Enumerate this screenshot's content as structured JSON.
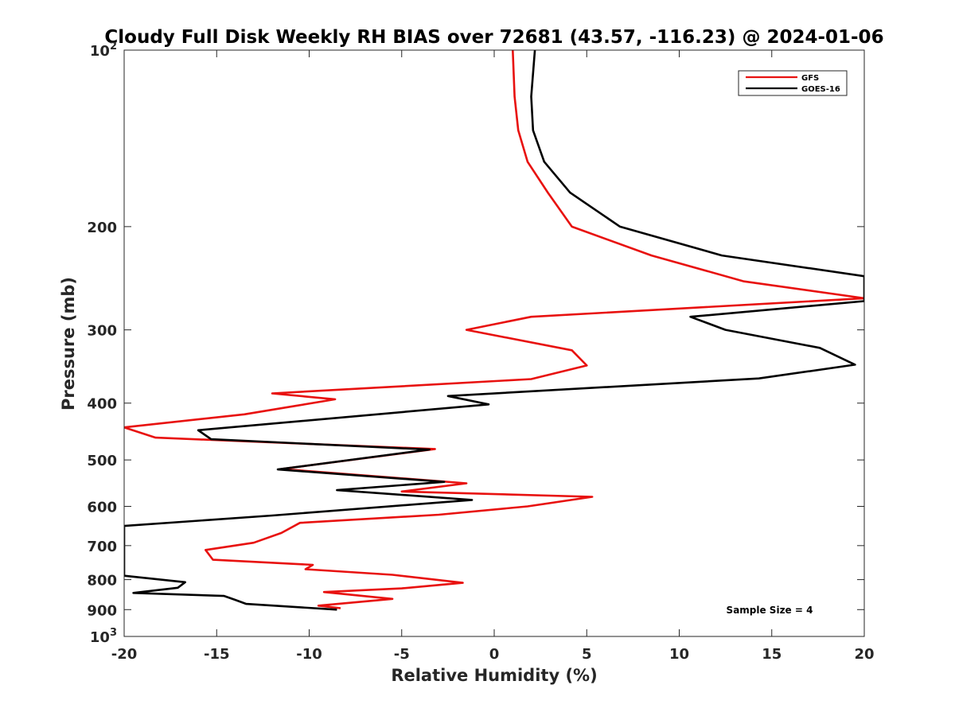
{
  "chart_data": {
    "type": "line",
    "title": "Cloudy Full Disk Weekly RH BIAS over 72681 (43.57, -116.23) @ 2024-01-06",
    "xlabel": "Relative Humidity (%)",
    "ylabel": "Pressure (mb)",
    "xlim": [
      -20,
      20
    ],
    "ylim": [
      100,
      1000
    ],
    "y_scale": "log",
    "y_reversed": true,
    "grid": false,
    "legend_position": "top-right",
    "x_ticks": [
      "-20",
      "-15",
      "-10",
      "-5",
      "0",
      "5",
      "10",
      "15",
      "20"
    ],
    "y_ticks": [
      {
        "value": 100,
        "base": "10",
        "exp": "2",
        "label": ""
      },
      {
        "value": 200,
        "label": "200"
      },
      {
        "value": 300,
        "label": "300"
      },
      {
        "value": 400,
        "label": "400"
      },
      {
        "value": 500,
        "label": "500"
      },
      {
        "value": 600,
        "label": "600"
      },
      {
        "value": 700,
        "label": "700"
      },
      {
        "value": 800,
        "label": "800"
      },
      {
        "value": 900,
        "label": "900"
      },
      {
        "value": 1000,
        "base": "10",
        "exp": "3",
        "label": ""
      }
    ],
    "annotation": "Sample Size = 4",
    "series": [
      {
        "name": "GFS",
        "color": "#e8110f",
        "points": [
          [
            1.0,
            100
          ],
          [
            1.1,
            120
          ],
          [
            1.3,
            137
          ],
          [
            1.8,
            155
          ],
          [
            2.9,
            175
          ],
          [
            4.2,
            200
          ],
          [
            8.5,
            224
          ],
          [
            13.5,
            248
          ],
          [
            20,
            265
          ],
          [
            2.0,
            285
          ],
          [
            -1.5,
            300
          ],
          [
            4.2,
            325
          ],
          [
            5.0,
            345
          ],
          [
            2.0,
            364
          ],
          [
            -12.0,
            385
          ],
          [
            -8.6,
            394
          ],
          [
            -13.5,
            418
          ],
          [
            -20,
            440
          ],
          [
            -18.3,
            458
          ],
          [
            -3.2,
            479
          ],
          [
            -11.5,
            518
          ],
          [
            -1.5,
            548
          ],
          [
            -5.0,
            566
          ],
          [
            5.3,
            578
          ],
          [
            1.8,
            600
          ],
          [
            -3.0,
            620
          ],
          [
            -10.5,
            640
          ],
          [
            -11.5,
            666
          ],
          [
            -13.0,
            692
          ],
          [
            -15.6,
            712
          ],
          [
            -15.2,
            740
          ],
          [
            -9.8,
            755
          ],
          [
            -10.2,
            768
          ],
          [
            -5.5,
            785
          ],
          [
            -1.7,
            810
          ],
          [
            -5.0,
            828
          ],
          [
            -9.2,
            840
          ],
          [
            -5.5,
            863
          ],
          [
            -9.5,
            886
          ],
          [
            -8.3,
            895
          ]
        ]
      },
      {
        "name": "GOES-16",
        "color": "#000000",
        "points": [
          [
            2.2,
            100
          ],
          [
            2.0,
            120
          ],
          [
            2.1,
            137
          ],
          [
            2.7,
            155
          ],
          [
            4.1,
            175
          ],
          [
            6.8,
            200
          ],
          [
            12.3,
            224
          ],
          [
            20,
            243
          ],
          [
            20,
            268
          ],
          [
            10.6,
            285
          ],
          [
            12.5,
            300
          ],
          [
            17.6,
            322
          ],
          [
            19.5,
            344
          ],
          [
            14.3,
            363
          ],
          [
            -2.5,
            389
          ],
          [
            -0.3,
            402
          ],
          [
            -16.0,
            445
          ],
          [
            -15.3,
            461
          ],
          [
            -3.5,
            480
          ],
          [
            -11.7,
            519
          ],
          [
            -2.7,
            545
          ],
          [
            -8.5,
            563
          ],
          [
            -1.2,
            585
          ],
          [
            -12.0,
            622
          ],
          [
            -20,
            648
          ],
          [
            -20,
            788
          ],
          [
            -16.7,
            808
          ],
          [
            -17.1,
            826
          ],
          [
            -19.5,
            843
          ],
          [
            -14.6,
            853
          ],
          [
            -14.0,
            866
          ],
          [
            -13.4,
            880
          ],
          [
            -8.5,
            900
          ]
        ]
      }
    ]
  }
}
